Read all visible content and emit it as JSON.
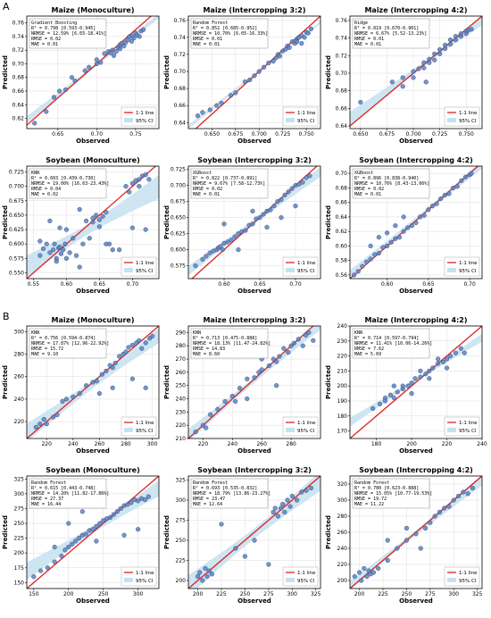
{
  "sections": [
    "A",
    "B"
  ],
  "legend": {
    "line": "1:1 line",
    "ci": "95% CI"
  },
  "colors": {
    "point": "#5b84c4",
    "point_edge": "#2f3f6a",
    "line": "#e02020",
    "ci": "#c6e0f0",
    "grid": "#dcdcdc"
  },
  "chart_data": [
    {
      "type": "scatter",
      "section": "A",
      "title": "Maize (Monoculture)",
      "xlabel": "Observed",
      "ylabel": "Predicted",
      "model": "Gradient Boosting",
      "stats": [
        "R² = 0.798 [0.593-0.945]",
        "NRMSE = 12.59% [6.65-18.41%]",
        "RMSE = 0.02",
        "MAE = 0.01"
      ],
      "xlim": [
        0.61,
        0.78
      ],
      "ylim": [
        0.605,
        0.77
      ],
      "xticks": [
        0.65,
        0.7,
        0.75
      ],
      "yticks": [
        0.62,
        0.64,
        0.66,
        0.68,
        0.7,
        0.72,
        0.74,
        0.76
      ],
      "x": [
        0.62,
        0.635,
        0.645,
        0.652,
        0.66,
        0.668,
        0.672,
        0.685,
        0.69,
        0.7,
        0.705,
        0.71,
        0.715,
        0.72,
        0.722,
        0.725,
        0.728,
        0.73,
        0.732,
        0.735,
        0.737,
        0.74,
        0.742,
        0.745,
        0.748,
        0.75,
        0.752,
        0.755,
        0.757,
        0.76,
        0.73,
        0.718,
        0.745,
        0.7
      ],
      "y": [
        0.613,
        0.63,
        0.651,
        0.66,
        0.662,
        0.68,
        0.675,
        0.69,
        0.695,
        0.7,
        0.702,
        0.715,
        0.718,
        0.72,
        0.712,
        0.718,
        0.724,
        0.728,
        0.73,
        0.726,
        0.731,
        0.735,
        0.74,
        0.733,
        0.738,
        0.745,
        0.742,
        0.74,
        0.748,
        0.75,
        0.722,
        0.716,
        0.741,
        0.706
      ]
    },
    {
      "type": "scatter",
      "section": "A",
      "title": "Maize (Intercropping 3:2)",
      "xlabel": "Observed",
      "ylabel": "Predicted",
      "model": "Random Forest",
      "stats": [
        "R² = 0.852 [0.685-0.952]",
        "NRMSE = 10.70% [6.05-16.33%]",
        "RMSE = 0.01",
        "MAE = 0.01"
      ],
      "xlim": [
        0.625,
        0.765
      ],
      "ylim": [
        0.633,
        0.765
      ],
      "xticks": [
        0.65,
        0.675,
        0.7,
        0.725,
        0.75
      ],
      "yticks": [
        0.64,
        0.66,
        0.68,
        0.7,
        0.72,
        0.74,
        0.76
      ],
      "x": [
        0.635,
        0.64,
        0.648,
        0.655,
        0.66,
        0.67,
        0.675,
        0.685,
        0.69,
        0.695,
        0.7,
        0.705,
        0.71,
        0.715,
        0.718,
        0.72,
        0.722,
        0.725,
        0.728,
        0.73,
        0.732,
        0.735,
        0.738,
        0.74,
        0.742,
        0.745,
        0.748,
        0.75,
        0.752,
        0.755,
        0.745,
        0.74
      ],
      "y": [
        0.648,
        0.652,
        0.655,
        0.66,
        0.663,
        0.672,
        0.675,
        0.688,
        0.69,
        0.695,
        0.7,
        0.705,
        0.71,
        0.712,
        0.716,
        0.72,
        0.718,
        0.724,
        0.726,
        0.73,
        0.728,
        0.735,
        0.733,
        0.738,
        0.74,
        0.742,
        0.74,
        0.746,
        0.745,
        0.75,
        0.733,
        0.735
      ]
    },
    {
      "type": "scatter",
      "section": "A",
      "title": "Maize (Intercropping 4:2)",
      "xlabel": "Observed",
      "ylabel": "Predicted",
      "model": "Ridge",
      "stats": [
        "R² = 0.819 [0.670-0.901]",
        "NRMSE = 6.67% [5.52-13.23%]",
        "RMSE = 0.01",
        "MAE = 0.01"
      ],
      "xlim": [
        0.64,
        0.765
      ],
      "ylim": [
        0.637,
        0.765
      ],
      "xticks": [
        0.65,
        0.675,
        0.7,
        0.725,
        0.75
      ],
      "yticks": [
        0.64,
        0.66,
        0.68,
        0.7,
        0.72,
        0.74,
        0.76
      ],
      "x": [
        0.65,
        0.68,
        0.69,
        0.69,
        0.7,
        0.7,
        0.705,
        0.71,
        0.71,
        0.715,
        0.715,
        0.72,
        0.72,
        0.725,
        0.725,
        0.73,
        0.73,
        0.735,
        0.735,
        0.74,
        0.74,
        0.745,
        0.745,
        0.75,
        0.75,
        0.755,
        0.752,
        0.712
      ],
      "y": [
        0.667,
        0.69,
        0.685,
        0.695,
        0.695,
        0.702,
        0.705,
        0.706,
        0.712,
        0.712,
        0.716,
        0.715,
        0.722,
        0.722,
        0.727,
        0.728,
        0.732,
        0.733,
        0.738,
        0.738,
        0.742,
        0.742,
        0.745,
        0.745,
        0.748,
        0.75,
        0.749,
        0.69
      ]
    },
    {
      "type": "scatter",
      "section": "A",
      "title": "Soybean (Monoculture)",
      "xlabel": "Observed",
      "ylabel": "Predicted",
      "model": "KNN",
      "stats": [
        "R² = 0.603 [0.439-0.730]",
        "NRMSE = 19.00% [16.63-23.43%]",
        "RMSE = 0.04",
        "MAE = 0.02"
      ],
      "xlim": [
        0.54,
        0.74
      ],
      "ylim": [
        0.54,
        0.735
      ],
      "xticks": [
        0.55,
        0.6,
        0.65,
        0.7
      ],
      "yticks": [
        0.55,
        0.575,
        0.6,
        0.625,
        0.65,
        0.675,
        0.7,
        0.725
      ],
      "x": [
        0.56,
        0.565,
        0.57,
        0.575,
        0.58,
        0.582,
        0.585,
        0.588,
        0.59,
        0.592,
        0.595,
        0.598,
        0.6,
        0.605,
        0.61,
        0.615,
        0.62,
        0.625,
        0.63,
        0.635,
        0.64,
        0.645,
        0.65,
        0.655,
        0.66,
        0.665,
        0.67,
        0.68,
        0.69,
        0.695,
        0.7,
        0.705,
        0.71,
        0.715,
        0.72,
        0.725,
        0.575,
        0.59,
        0.6,
        0.62,
        0.64,
        0.65,
        0.66,
        0.7,
        0.71,
        0.72,
        0.56,
        0.585
      ],
      "y": [
        0.58,
        0.592,
        0.6,
        0.585,
        0.59,
        0.6,
        0.575,
        0.593,
        0.595,
        0.583,
        0.59,
        0.6,
        0.575,
        0.585,
        0.61,
        0.58,
        0.56,
        0.6,
        0.64,
        0.61,
        0.645,
        0.65,
        0.642,
        0.648,
        0.655,
        0.6,
        0.59,
        0.59,
        0.7,
        0.69,
        0.705,
        0.71,
        0.712,
        0.718,
        0.72,
        0.712,
        0.64,
        0.628,
        0.625,
        0.66,
        0.638,
        0.63,
        0.6,
        0.628,
        0.7,
        0.625,
        0.605,
        0.57
      ]
    },
    {
      "type": "scatter",
      "section": "A",
      "title": "Soybean (Intercropping 3:2)",
      "xlabel": "Observed",
      "ylabel": "Predicted",
      "model": "XGBoost",
      "stats": [
        "R² = 0.822 [0.737-0.891]",
        "NRMSE = 9.67% [7.58-12.73%]",
        "RMSE = 0.02",
        "MAE = 0.01"
      ],
      "xlim": [
        0.55,
        0.735
      ],
      "ylim": [
        0.555,
        0.73
      ],
      "xticks": [
        0.6,
        0.65,
        0.7
      ],
      "yticks": [
        0.575,
        0.6,
        0.625,
        0.65,
        0.675,
        0.7,
        0.725
      ],
      "x": [
        0.56,
        0.57,
        0.575,
        0.58,
        0.585,
        0.59,
        0.592,
        0.595,
        0.598,
        0.6,
        0.605,
        0.61,
        0.615,
        0.62,
        0.625,
        0.63,
        0.635,
        0.64,
        0.645,
        0.65,
        0.655,
        0.66,
        0.665,
        0.67,
        0.675,
        0.68,
        0.685,
        0.69,
        0.695,
        0.7,
        0.705,
        0.71,
        0.715,
        0.72,
        0.6,
        0.62,
        0.64,
        0.66,
        0.68,
        0.7
      ],
      "y": [
        0.575,
        0.585,
        0.59,
        0.595,
        0.598,
        0.6,
        0.603,
        0.605,
        0.6,
        0.61,
        0.612,
        0.615,
        0.62,
        0.625,
        0.628,
        0.63,
        0.638,
        0.64,
        0.648,
        0.65,
        0.655,
        0.66,
        0.662,
        0.668,
        0.675,
        0.678,
        0.685,
        0.69,
        0.695,
        0.7,
        0.702,
        0.705,
        0.712,
        0.715,
        0.64,
        0.6,
        0.66,
        0.635,
        0.65,
        0.668
      ]
    },
    {
      "type": "scatter",
      "section": "A",
      "title": "Soybean (Intercropping 4:2)",
      "xlabel": "Observed",
      "ylabel": "Predicted",
      "model": "XGBoost",
      "stats": [
        "R² = 0.896 [0.838-0.940]",
        "NRMSE = 10.76% [8.43-13.06%]",
        "RMSE = 0.02",
        "MAE = 0.01"
      ],
      "xlim": [
        0.555,
        0.715
      ],
      "ylim": [
        0.555,
        0.71
      ],
      "xticks": [
        0.6,
        0.65,
        0.7
      ],
      "yticks": [
        0.56,
        0.58,
        0.6,
        0.62,
        0.64,
        0.66,
        0.68,
        0.7
      ],
      "x": [
        0.56,
        0.565,
        0.57,
        0.575,
        0.58,
        0.585,
        0.59,
        0.595,
        0.6,
        0.605,
        0.61,
        0.615,
        0.62,
        0.625,
        0.63,
        0.635,
        0.64,
        0.645,
        0.65,
        0.655,
        0.66,
        0.665,
        0.67,
        0.675,
        0.68,
        0.685,
        0.69,
        0.695,
        0.7,
        0.702,
        0.58,
        0.59,
        0.6,
        0.61,
        0.62
      ],
      "y": [
        0.56,
        0.565,
        0.572,
        0.578,
        0.582,
        0.588,
        0.59,
        0.598,
        0.6,
        0.605,
        0.61,
        0.612,
        0.62,
        0.625,
        0.628,
        0.632,
        0.64,
        0.642,
        0.65,
        0.655,
        0.658,
        0.665,
        0.67,
        0.672,
        0.68,
        0.682,
        0.69,
        0.695,
        0.698,
        0.7,
        0.6,
        0.612,
        0.618,
        0.628,
        0.64
      ]
    },
    {
      "type": "scatter",
      "section": "B",
      "title": "Maize (Monoculture)",
      "xlabel": "Observed",
      "ylabel": "Predicted",
      "model": "KNN",
      "stats": [
        "R² = 0.756 [0.594-0.874]",
        "NRMSE = 17.87% [12.96-22.92%]",
        "RMSE = 15.72",
        "MAE = 9.10"
      ],
      "xlim": [
        205,
        305
      ],
      "ylim": [
        205,
        305
      ],
      "xticks": [
        220,
        240,
        260,
        280,
        300
      ],
      "yticks": [
        220,
        240,
        260,
        280,
        300
      ],
      "x": [
        212,
        215,
        218,
        220,
        225,
        228,
        232,
        235,
        240,
        245,
        250,
        255,
        258,
        262,
        265,
        268,
        270,
        272,
        275,
        278,
        280,
        282,
        285,
        288,
        290,
        292,
        295,
        298,
        300,
        260,
        270,
        285,
        295
      ],
      "y": [
        215,
        218,
        222,
        218,
        224,
        226,
        238,
        240,
        242,
        245,
        252,
        255,
        256,
        262,
        265,
        270,
        268,
        272,
        278,
        280,
        282,
        286,
        288,
        290,
        292,
        285,
        290,
        294,
        296,
        245,
        250,
        258,
        250
      ]
    },
    {
      "type": "scatter",
      "section": "B",
      "title": "Maize (Intercropping 3:2)",
      "xlabel": "Observed",
      "ylabel": "Predicted",
      "model": "KNN",
      "stats": [
        "R² = 0.713 [0.475-0.888]",
        "NRMSE = 18.13% [11.47-24.82%]",
        "RMSE = 14.83",
        "MAE = 8.60"
      ],
      "xlim": [
        210,
        300
      ],
      "ylim": [
        210,
        295
      ],
      "xticks": [
        220,
        240,
        260,
        280
      ],
      "yticks": [
        210,
        220,
        230,
        240,
        250,
        260,
        270,
        280,
        290
      ],
      "x": [
        215,
        220,
        222,
        225,
        230,
        235,
        240,
        242,
        245,
        250,
        255,
        258,
        260,
        265,
        268,
        270,
        272,
        275,
        278,
        280,
        282,
        285,
        288,
        290,
        292,
        295,
        250,
        260,
        270
      ],
      "y": [
        215,
        220,
        218,
        228,
        232,
        238,
        242,
        238,
        248,
        255,
        256,
        260,
        262,
        265,
        270,
        268,
        272,
        278,
        275,
        280,
        282,
        285,
        280,
        288,
        290,
        284,
        240,
        270,
        250
      ]
    },
    {
      "type": "scatter",
      "section": "B",
      "title": "Maize (Intercropping 4:2)",
      "xlabel": "Observed",
      "ylabel": "Predicted",
      "model": "KNN",
      "stats": [
        "R² = 0.714 [0.597-0.794]",
        "NRMSE = 11.41% [10.06-14.26%]",
        "RMSE = 7.62",
        "MAE = 5.69"
      ],
      "xlim": [
        165,
        240
      ],
      "ylim": [
        165,
        240
      ],
      "xticks": [
        180,
        200,
        220,
        240
      ],
      "yticks": [
        170,
        180,
        190,
        200,
        210,
        220,
        230,
        240
      ],
      "x": [
        178,
        182,
        185,
        188,
        190,
        192,
        195,
        198,
        200,
        202,
        205,
        208,
        210,
        212,
        215,
        218,
        220,
        222,
        225,
        228,
        230,
        190,
        200,
        210,
        220,
        185,
        195,
        205,
        215
      ],
      "y": [
        185,
        188,
        192,
        194,
        192,
        196,
        198,
        200,
        202,
        205,
        206,
        208,
        210,
        212,
        215,
        216,
        218,
        220,
        222,
        225,
        222,
        200,
        195,
        205,
        212,
        190,
        200,
        210,
        218
      ]
    },
    {
      "type": "scatter",
      "section": "B",
      "title": "Soybean (Monoculture)",
      "xlabel": "Observed",
      "ylabel": "Predicted",
      "model": "Random Forest",
      "stats": [
        "R² = 0.615 [0.443-0.748]",
        "NRMSE = 14.20% [11.82-17.86%]",
        "RMSE = 27.37",
        "MAE = 16.44"
      ],
      "xlim": [
        140,
        330
      ],
      "ylim": [
        140,
        330
      ],
      "xticks": [
        150,
        200,
        250,
        300
      ],
      "yticks": [
        150,
        175,
        200,
        225,
        250,
        275,
        300,
        325
      ],
      "x": [
        150,
        160,
        170,
        180,
        190,
        195,
        200,
        205,
        210,
        215,
        220,
        225,
        230,
        235,
        240,
        245,
        250,
        255,
        260,
        265,
        270,
        275,
        280,
        285,
        290,
        295,
        300,
        305,
        310,
        315,
        200,
        220,
        250,
        280,
        300,
        180,
        240
      ],
      "y": [
        160,
        170,
        175,
        185,
        195,
        205,
        210,
        215,
        220,
        225,
        230,
        232,
        238,
        240,
        245,
        250,
        255,
        258,
        260,
        265,
        270,
        275,
        280,
        282,
        285,
        290,
        288,
        292,
        290,
        295,
        250,
        270,
        300,
        230,
        240,
        210,
        220
      ]
    },
    {
      "type": "scatter",
      "section": "B",
      "title": "Soybean (Intercropping 3:2)",
      "xlabel": "Observed",
      "ylabel": "Predicted",
      "model": "Random Forest",
      "stats": [
        "R² = 0.693 [0.535-0.832]",
        "NRMSE = 18.79% [13.86-23.27%]",
        "RMSE = 23.47",
        "MAE = 12.64"
      ],
      "xlim": [
        190,
        330
      ],
      "ylim": [
        190,
        330
      ],
      "xticks": [
        200,
        225,
        250,
        275,
        300,
        325
      ],
      "yticks": [
        200,
        225,
        250,
        275,
        300,
        325
      ],
      "x": [
        200,
        202,
        205,
        208,
        210,
        212,
        215,
        280,
        282,
        285,
        288,
        290,
        292,
        295,
        298,
        300,
        305,
        310,
        315,
        320,
        250,
        260,
        225,
        240,
        275
      ],
      "y": [
        205,
        210,
        200,
        215,
        205,
        212,
        208,
        285,
        290,
        280,
        290,
        295,
        285,
        300,
        292,
        305,
        300,
        310,
        312,
        315,
        230,
        250,
        270,
        240,
        220
      ]
    },
    {
      "type": "scatter",
      "section": "B",
      "title": "Soybean (Intercropping 4:2)",
      "xlabel": "Observed",
      "ylabel": "Predicted",
      "model": "Random Forest",
      "stats": [
        "R² = 0.780 [0.623-0.888]",
        "NRMSE = 15.05% [10.77-19.53%]",
        "RMSE = 19.72",
        "MAE = 11.22"
      ],
      "xlim": [
        190,
        330
      ],
      "ylim": [
        190,
        330
      ],
      "xticks": [
        200,
        225,
        250,
        275,
        300,
        325
      ],
      "yticks": [
        200,
        220,
        240,
        260,
        280,
        300,
        320
      ],
      "x": [
        195,
        200,
        202,
        205,
        208,
        210,
        212,
        215,
        220,
        230,
        240,
        250,
        260,
        270,
        275,
        280,
        285,
        290,
        295,
        300,
        305,
        310,
        315,
        320,
        250,
        265,
        230
      ],
      "y": [
        205,
        210,
        200,
        215,
        205,
        212,
        208,
        210,
        215,
        225,
        240,
        250,
        258,
        265,
        272,
        280,
        285,
        290,
        292,
        300,
        305,
        310,
        308,
        315,
        265,
        240,
        250
      ]
    }
  ]
}
